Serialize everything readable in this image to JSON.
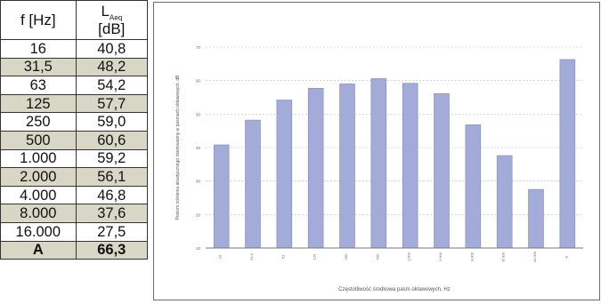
{
  "table": {
    "header_freq": "f [Hz]",
    "header_level_main": "L",
    "header_level_sub": "Aeq",
    "header_level_unit": "[dB]",
    "rows": [
      {
        "f": "16",
        "val": "40,8"
      },
      {
        "f": "31,5",
        "val": "48,2"
      },
      {
        "f": "63",
        "val": "54,2"
      },
      {
        "f": "125",
        "val": "57,7"
      },
      {
        "f": "250",
        "val": "59,0"
      },
      {
        "f": "500",
        "val": "60,6"
      },
      {
        "f": "1.000",
        "val": "59,2"
      },
      {
        "f": "2.000",
        "val": "56,1"
      },
      {
        "f": "4.000",
        "val": "46,8"
      },
      {
        "f": "8.000",
        "val": "37,6"
      },
      {
        "f": "16.000",
        "val": "27,5"
      }
    ],
    "total": {
      "f": "A",
      "val": "66,3"
    }
  },
  "colors": {
    "bar": "#a3acd8",
    "bar_edge": "#7f89be",
    "shade": "#d8d6c5"
  },
  "chart_data": {
    "type": "bar",
    "categories": [
      "16",
      "31,5",
      "63",
      "125",
      "250",
      "500",
      "1.000",
      "2.000",
      "4.000",
      "8.000",
      "16.000",
      "A"
    ],
    "values": [
      40.8,
      48.2,
      54.2,
      57.7,
      59.0,
      60.6,
      59.2,
      56.1,
      46.8,
      37.6,
      27.5,
      66.3
    ],
    "ylim": [
      10,
      70
    ],
    "yticks": [
      10,
      20,
      30,
      40,
      50,
      60,
      70
    ],
    "xlabel": "Częstotliwość środkowa pasm oktawowych, Hz",
    "ylabel": "Poziom ciśnienia akustycznego równoważny w pasmach oktawowych, dB",
    "grid": true,
    "legend": "none"
  }
}
